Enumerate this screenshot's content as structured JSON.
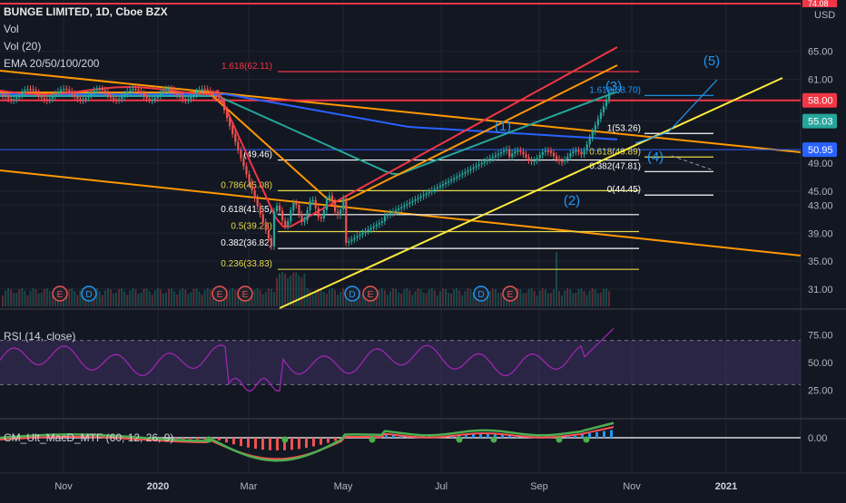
{
  "header": {
    "symbol_line": "BUNGE LIMITED, 1D, Cboe BZX",
    "vol_label": "Vol",
    "vol20_label": "Vol (20)",
    "ema_label": "EMA 20/50/100/200",
    "currency": "USD",
    "top_price": "74.08"
  },
  "chart_data": [
    {
      "type": "line",
      "pane": "price",
      "y_ticks": [
        "65.00",
        "61.00",
        "58.00",
        "55.03",
        "50.95",
        "49.00",
        "45.00",
        "43.00",
        "39.00",
        "35.00",
        "31.00"
      ],
      "x_ticks": [
        "Nov",
        "2020",
        "Mar",
        "May",
        "Jul",
        "Sep",
        "Nov",
        "2021"
      ],
      "price_badges": [
        {
          "text": "58.00",
          "color": "#f23645"
        },
        {
          "text": "55.03",
          "color": "#26a69a"
        },
        {
          "text": "50.95",
          "color": "#2962ff"
        }
      ],
      "fib_levels": [
        {
          "label": "1.618(62.11)",
          "value": 62.11,
          "color": "#f23645"
        },
        {
          "label": "0.786(45.08)",
          "value": 45.08,
          "color": "#e8d84a"
        },
        {
          "label": "0.618(41.65)",
          "value": 41.65,
          "color": "#ffffff"
        },
        {
          "label": "0.5(39.23)",
          "value": 39.23,
          "color": "#e8d84a"
        },
        {
          "label": "0.382(36.82)",
          "value": 36.82,
          "color": "#ffffff"
        },
        {
          "label": "0.236(33.83)",
          "value": 33.83,
          "color": "#e8d84a"
        },
        {
          "label": "(49.46)",
          "value": 49.46,
          "color": "#ffffff"
        }
      ],
      "fib_ext_levels": [
        {
          "label": "1.618(58.70)",
          "value": 58.7,
          "color": "#2196f3"
        },
        {
          "label": "1(53.26)",
          "value": 53.26,
          "color": "#ffffff"
        },
        {
          "label": "0.618(49.89)",
          "value": 49.89,
          "color": "#e8d84a"
        },
        {
          "label": "0.382(47.81)",
          "value": 47.81,
          "color": "#ffffff"
        },
        {
          "label": "0(44.45)",
          "value": 44.45,
          "color": "#ffffff"
        }
      ],
      "wave_labels": [
        "(1)",
        "(2)",
        "(3)",
        "(4)",
        "(5)"
      ],
      "event_markers": [
        "E",
        "D",
        "E",
        "E",
        "D",
        "E",
        "D",
        "E"
      ]
    },
    {
      "type": "line",
      "pane": "rsi",
      "title": "RSI (14, close)",
      "y_ticks": [
        "75.00",
        "50.00",
        "25.00"
      ],
      "ylim": [
        0,
        100
      ],
      "bands": [
        70,
        30
      ]
    },
    {
      "type": "bar",
      "pane": "macd",
      "title": "CM_Ult_MacD_MTF (60, 12, 26, 9)",
      "y_ticks": [
        "0.00"
      ]
    }
  ],
  "colors": {
    "background": "#131722",
    "grid": "#1f2433",
    "up_candle": "#26a69a",
    "down_candle": "#ef5350",
    "ema20": "#f23645",
    "ema50": "#ff9800",
    "ema100": "#26a69a",
    "ema200": "#2962ff",
    "trend_orange": "#ff9800",
    "trend_yellow": "#ffeb3b",
    "rsi_line": "#9c27b0",
    "rsi_band": "rgba(126,87,194,0.22)"
  }
}
